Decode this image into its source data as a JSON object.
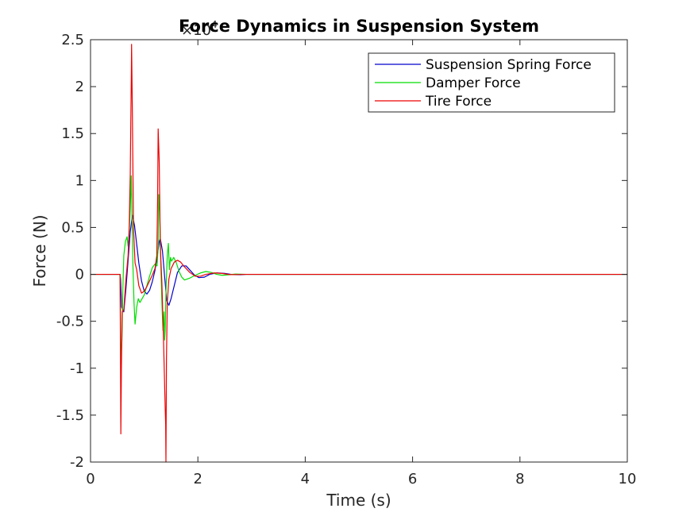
{
  "chart_data": {
    "type": "line",
    "title": "Force Dynamics in Suspension System",
    "xlabel": "Time (s)",
    "ylabel": "Force (N)",
    "xlim": [
      0,
      10
    ],
    "ylim": [
      -20000,
      25000
    ],
    "y_multiplier_base": "×10",
    "y_multiplier_exponent": "4",
    "xticks": [
      0,
      2,
      4,
      6,
      8,
      10
    ],
    "xtick_labels": [
      "0",
      "2",
      "4",
      "6",
      "8",
      "10"
    ],
    "yticks": [
      -20000,
      -15000,
      -10000,
      -5000,
      0,
      5000,
      10000,
      15000,
      20000,
      25000
    ],
    "ytick_labels": [
      "-2",
      "-1.5",
      "-1",
      "-0.5",
      "0",
      "0.5",
      "1",
      "1.5",
      "2",
      "2.5"
    ],
    "grid": false,
    "legend_position": "top-right",
    "series": [
      {
        "name": "Suspension Spring Force",
        "color": "#0000cc",
        "points": [
          [
            0,
            0
          ],
          [
            0.55,
            0
          ],
          [
            0.56,
            -500
          ],
          [
            0.58,
            -3500
          ],
          [
            0.62,
            -4000
          ],
          [
            0.66,
            -1500
          ],
          [
            0.7,
            1500
          ],
          [
            0.74,
            4500
          ],
          [
            0.78,
            6300
          ],
          [
            0.82,
            5200
          ],
          [
            0.86,
            3200
          ],
          [
            0.9,
            1200
          ],
          [
            0.95,
            -700
          ],
          [
            1.0,
            -1800
          ],
          [
            1.05,
            -2100
          ],
          [
            1.1,
            -1700
          ],
          [
            1.15,
            -800
          ],
          [
            1.2,
            400
          ],
          [
            1.24,
            1800
          ],
          [
            1.28,
            3500
          ],
          [
            1.3,
            3800
          ],
          [
            1.34,
            2500
          ],
          [
            1.38,
            -200
          ],
          [
            1.42,
            -2800
          ],
          [
            1.46,
            -3300
          ],
          [
            1.5,
            -2600
          ],
          [
            1.56,
            -1200
          ],
          [
            1.62,
            200
          ],
          [
            1.7,
            900
          ],
          [
            1.78,
            900
          ],
          [
            1.86,
            400
          ],
          [
            1.94,
            -100
          ],
          [
            2.02,
            -350
          ],
          [
            2.12,
            -300
          ],
          [
            2.22,
            0
          ],
          [
            2.35,
            150
          ],
          [
            2.5,
            100
          ],
          [
            2.65,
            -30
          ],
          [
            2.8,
            -40
          ],
          [
            2.9,
            0
          ],
          [
            10,
            0
          ]
        ]
      },
      {
        "name": "Damper Force",
        "color": "#00dd00",
        "points": [
          [
            0,
            0
          ],
          [
            0.55,
            0
          ],
          [
            0.555,
            -3000
          ],
          [
            0.565,
            -9500
          ],
          [
            0.585,
            -7000
          ],
          [
            0.6,
            -2000
          ],
          [
            0.62,
            2000
          ],
          [
            0.65,
            3500
          ],
          [
            0.68,
            4000
          ],
          [
            0.7,
            3000
          ],
          [
            0.72,
            4500
          ],
          [
            0.74,
            7000
          ],
          [
            0.76,
            10500
          ],
          [
            0.77,
            7000
          ],
          [
            0.79,
            1000
          ],
          [
            0.81,
            -3000
          ],
          [
            0.83,
            -5300
          ],
          [
            0.86,
            -3500
          ],
          [
            0.89,
            -2600
          ],
          [
            0.92,
            -3000
          ],
          [
            0.95,
            -2700
          ],
          [
            1.0,
            -2200
          ],
          [
            1.05,
            -1200
          ],
          [
            1.1,
            -200
          ],
          [
            1.15,
            700
          ],
          [
            1.2,
            1100
          ],
          [
            1.24,
            900
          ],
          [
            1.26,
            3000
          ],
          [
            1.27,
            8500
          ],
          [
            1.29,
            6500
          ],
          [
            1.31,
            1000
          ],
          [
            1.33,
            -3000
          ],
          [
            1.35,
            -6000
          ],
          [
            1.37,
            -4000
          ],
          [
            1.38,
            -7000
          ],
          [
            1.39,
            -6000
          ],
          [
            1.41,
            -1000
          ],
          [
            1.43,
            2000
          ],
          [
            1.45,
            3300
          ],
          [
            1.47,
            500
          ],
          [
            1.49,
            1800
          ],
          [
            1.51,
            1400
          ],
          [
            1.55,
            1800
          ],
          [
            1.6,
            1200
          ],
          [
            1.65,
            300
          ],
          [
            1.7,
            -300
          ],
          [
            1.75,
            -600
          ],
          [
            1.85,
            -400
          ],
          [
            1.95,
            -100
          ],
          [
            2.05,
            150
          ],
          [
            2.15,
            300
          ],
          [
            2.25,
            200
          ],
          [
            2.35,
            0
          ],
          [
            2.45,
            -100
          ],
          [
            2.55,
            -60
          ],
          [
            2.7,
            30
          ],
          [
            2.9,
            0
          ],
          [
            10,
            0
          ]
        ]
      },
      {
        "name": "Tire Force",
        "color": "#ee0000",
        "points": [
          [
            0,
            0
          ],
          [
            0.55,
            0
          ],
          [
            0.555,
            -5000
          ],
          [
            0.565,
            -17000
          ],
          [
            0.575,
            -10000
          ],
          [
            0.59,
            -4000
          ],
          [
            0.62,
            -3800
          ],
          [
            0.66,
            -500
          ],
          [
            0.7,
            2000
          ],
          [
            0.72,
            5000
          ],
          [
            0.74,
            10500
          ],
          [
            0.75,
            16000
          ],
          [
            0.76,
            21000
          ],
          [
            0.765,
            24500
          ],
          [
            0.78,
            17000
          ],
          [
            0.8,
            5000
          ],
          [
            0.83,
            1200
          ],
          [
            0.86,
            500
          ],
          [
            0.9,
            -1200
          ],
          [
            0.95,
            -2000
          ],
          [
            1.0,
            -1800
          ],
          [
            1.05,
            -1300
          ],
          [
            1.1,
            -700
          ],
          [
            1.15,
            -100
          ],
          [
            1.2,
            600
          ],
          [
            1.235,
            2000
          ],
          [
            1.25,
            8000
          ],
          [
            1.26,
            15500
          ],
          [
            1.28,
            12000
          ],
          [
            1.3,
            3000
          ],
          [
            1.33,
            -1000
          ],
          [
            1.36,
            -7000
          ],
          [
            1.39,
            -14000
          ],
          [
            1.4,
            -16000
          ],
          [
            1.405,
            -20000
          ],
          [
            1.415,
            -9000
          ],
          [
            1.43,
            -3000
          ],
          [
            1.46,
            -500
          ],
          [
            1.5,
            600
          ],
          [
            1.56,
            1300
          ],
          [
            1.62,
            1500
          ],
          [
            1.68,
            1300
          ],
          [
            1.75,
            800
          ],
          [
            1.85,
            200
          ],
          [
            1.95,
            -200
          ],
          [
            2.05,
            -200
          ],
          [
            2.15,
            0
          ],
          [
            2.3,
            150
          ],
          [
            2.45,
            100
          ],
          [
            2.6,
            -30
          ],
          [
            2.75,
            -20
          ],
          [
            2.9,
            0
          ],
          [
            10,
            0
          ]
        ]
      }
    ]
  }
}
